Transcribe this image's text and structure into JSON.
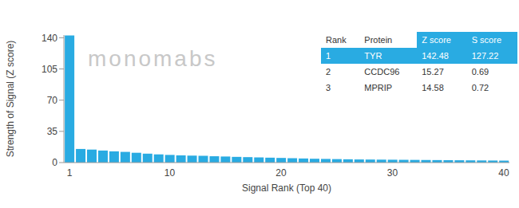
{
  "chart_data": {
    "type": "bar",
    "x_label": "Signal Rank (Top 40)",
    "y_label": "Strength of Signal (Z score)",
    "annotations": [
      "monomabs"
    ],
    "categories": [
      "1",
      null,
      null,
      null,
      null,
      null,
      null,
      null,
      null,
      "10",
      null,
      null,
      null,
      null,
      null,
      null,
      null,
      null,
      null,
      "20",
      null,
      null,
      null,
      null,
      null,
      null,
      null,
      null,
      null,
      "30",
      null,
      null,
      null,
      null,
      null,
      null,
      null,
      null,
      null,
      "40"
    ],
    "values": [
      142.48,
      15.27,
      14.58,
      13.5,
      12.6,
      12.0,
      11.0,
      10.0,
      9.2,
      8.6,
      8.1,
      7.8,
      7.5,
      7.1,
      6.8,
      6.4,
      6.1,
      5.8,
      5.5,
      5.2,
      4.9,
      4.6,
      4.3,
      4.1,
      3.9,
      3.7,
      3.5,
      3.4,
      3.3,
      3.2,
      3.1,
      3.0,
      2.9,
      2.8,
      2.7,
      2.6,
      2.5,
      2.4,
      2.3,
      2.2
    ],
    "color": "#29abe2",
    "ylim": [
      0,
      143
    ],
    "yticks": [
      0,
      35,
      70,
      105,
      140
    ],
    "grid": false,
    "table": {
      "columns": [
        "Rank",
        "Protein",
        "Z score",
        "S score"
      ],
      "rows": [
        [
          1,
          "TYR",
          142.48,
          127.22
        ],
        [
          2,
          "CCDC96",
          15.27,
          0.69
        ],
        [
          3,
          "MPRIP",
          14.58,
          0.72
        ]
      ]
    }
  }
}
